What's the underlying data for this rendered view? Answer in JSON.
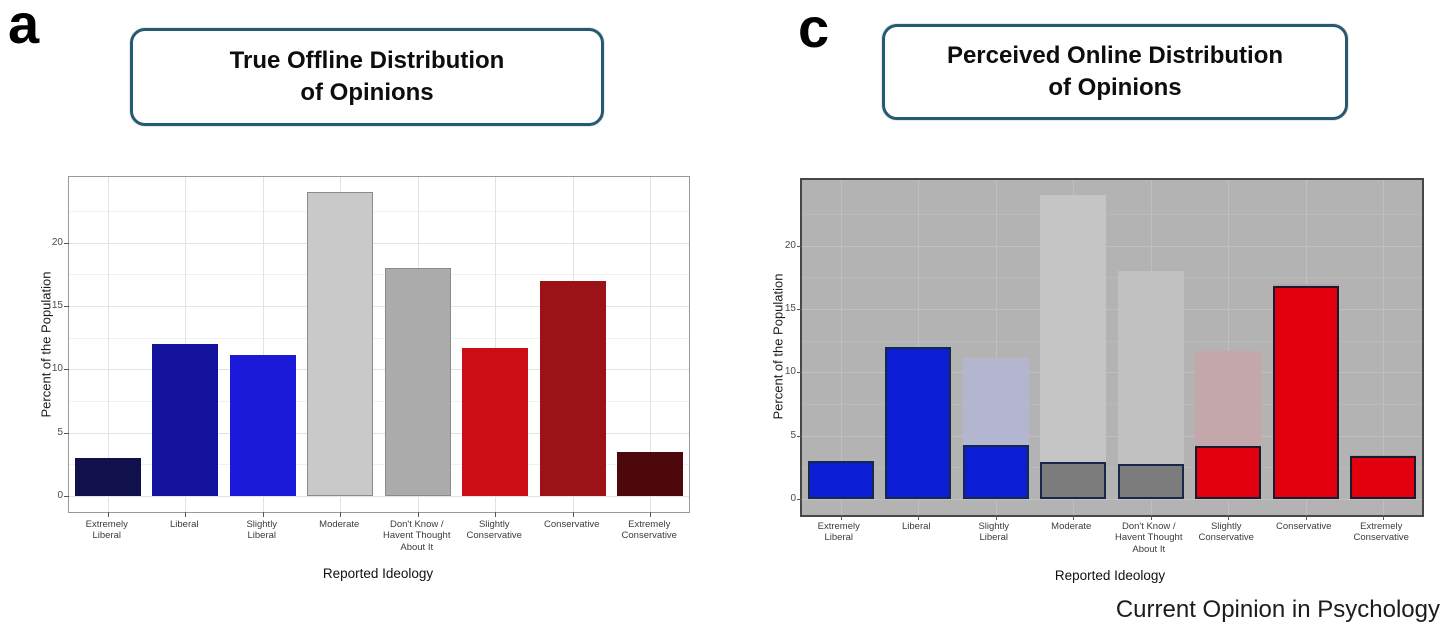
{
  "figure": {
    "journal_label": "Current Opinion in Psychology",
    "accent_border_color": "#265a70"
  },
  "panels": [
    {
      "letter": "a",
      "title_lines": [
        "True Offline Distribution",
        "of Opinions"
      ]
    },
    {
      "letter": "c",
      "title_lines": [
        "Perceived Online Distribution",
        "of Opinions"
      ]
    }
  ],
  "chart_data": [
    {
      "type": "bar",
      "title": "True Offline Distribution of Opinions",
      "xlabel": "Reported Ideology",
      "ylabel": "Percent of the Population",
      "yticks": [
        0,
        5,
        10,
        15,
        20
      ],
      "yticks_minor": [
        2.5,
        7.5,
        12.5,
        17.5,
        22.5
      ],
      "ylim": [
        0,
        25.2
      ],
      "grid": true,
      "legend": "none",
      "panel_bg": "#ffffff",
      "panel_border": "1px solid #999999",
      "grid_major_color": "#e3e3e3",
      "grid_minor_color": "#f0f0f0",
      "categories": [
        "Extremely\nLiberal",
        "Liberal",
        "Slightly\nLiberal",
        "Moderate",
        "Don't Know /\nHavent Thought\nAbout It",
        "Slightly\nConservative",
        "Conservative",
        "Extremely\nConservative"
      ],
      "values": [
        3,
        12,
        11.1,
        24,
        18,
        11.7,
        17,
        3.5
      ],
      "bar_colors": [
        "#10104d",
        "#12129c",
        "#1a1ad8",
        "#c9c9c9",
        "#ababab",
        "#cb0e14",
        "#9b1316",
        "#4c080b"
      ],
      "bar_border_colors": [
        "none",
        "none",
        "none",
        "#8a8a8a",
        "#8a8a8a",
        "none",
        "none",
        "none"
      ],
      "bar_border_width": 1,
      "ghost_values": null
    },
    {
      "type": "bar",
      "title": "Perceived Online Distribution of Opinions",
      "xlabel": "Reported Ideology",
      "ylabel": "Percent of the Population",
      "yticks": [
        0,
        5,
        10,
        15,
        20
      ],
      "yticks_minor": [
        2.5,
        7.5,
        12.5,
        17.5,
        22.5
      ],
      "ylim": [
        0,
        25.2
      ],
      "grid": true,
      "legend": "none",
      "panel_bg": "#b3b3b3",
      "panel_border": "2px solid #474747",
      "grid_major_color": "#c0c0c0",
      "grid_minor_color": "#bababa",
      "categories": [
        "Extremely\nLiberal",
        "Liberal",
        "Slightly\nLiberal",
        "Moderate",
        "Don't Know /\nHavent Thought\nAbout It",
        "Slightly\nConservative",
        "Conservative",
        "Extremely\nConservative"
      ],
      "values": [
        3,
        12,
        4.3,
        2.9,
        2.8,
        4.2,
        16.8,
        3.4
      ],
      "bar_colors": [
        "#0b1ed6",
        "#0b1ed6",
        "#0b1ed6",
        "#7c7c7c",
        "#7c7c7c",
        "#e2000e",
        "#e2000e",
        "#e2000e"
      ],
      "bar_border_colors": [
        "#16294a",
        "#16294a",
        "#16294a",
        "#16294a",
        "#16294a",
        "#1a1a2e",
        "#1a1a2e",
        "#1a1a2e"
      ],
      "bar_border_width": 2,
      "ghost_values": [
        3,
        12,
        11.1,
        24,
        18,
        11.7,
        17,
        3.5
      ],
      "ghost_colors": [
        "#a8aabd",
        "#a6a8c4",
        "#b4b6d0",
        "#c5c5c5",
        "#c1c1c1",
        "#c3a7aa",
        "#bfa0a3",
        "#b39fa1"
      ]
    }
  ]
}
